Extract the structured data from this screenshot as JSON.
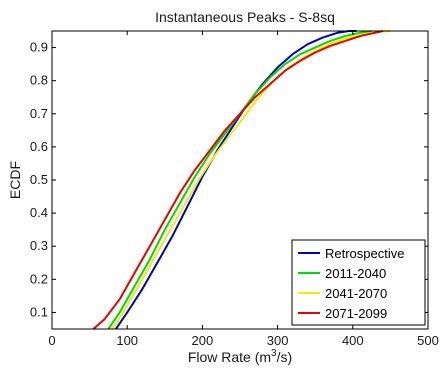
{
  "chart_data": {
    "type": "line",
    "title": "Instantaneous Peaks - S-8sq",
    "xlabel_main": "Flow Rate (m",
    "xlabel_sup": "3",
    "xlabel_tail": "/s)",
    "ylabel": "ECDF",
    "xlim": [
      0,
      500
    ],
    "ylim": [
      0.05,
      0.95
    ],
    "xticks": [
      0,
      100,
      200,
      300,
      400,
      500
    ],
    "xtick_labels": [
      "0",
      "100",
      "200",
      "300",
      "400",
      "500"
    ],
    "yticks": [
      0.1,
      0.2,
      0.3,
      0.4,
      0.5,
      0.6,
      0.7,
      0.8,
      0.9
    ],
    "ytick_labels": [
      "0.1",
      "0.2",
      "0.3",
      "0.4",
      "0.5",
      "0.6",
      "0.7",
      "0.8",
      "0.9"
    ],
    "grid": false,
    "legend_position": "bottom-right",
    "series": [
      {
        "name": "Retrospective",
        "color": "#0000cc",
        "x": [
          85,
          100,
          120,
          140,
          160,
          180,
          200,
          220,
          240,
          260,
          280,
          300,
          320,
          340,
          360,
          380,
          395,
          405
        ],
        "y": [
          0.05,
          0.1,
          0.17,
          0.25,
          0.33,
          0.42,
          0.51,
          0.59,
          0.66,
          0.73,
          0.79,
          0.84,
          0.88,
          0.91,
          0.93,
          0.945,
          0.95,
          0.95
        ]
      },
      {
        "name": "2011-2040",
        "color": "#00dd00",
        "x": [
          75,
          90,
          110,
          130,
          150,
          170,
          190,
          210,
          230,
          250,
          270,
          290,
          310,
          330,
          350,
          370,
          390,
          410,
          425
        ],
        "y": [
          0.05,
          0.1,
          0.18,
          0.26,
          0.35,
          0.43,
          0.51,
          0.58,
          0.64,
          0.7,
          0.76,
          0.81,
          0.85,
          0.88,
          0.9,
          0.92,
          0.935,
          0.945,
          0.95
        ]
      },
      {
        "name": "2041-2070",
        "color": "#eeee00",
        "x": [
          80,
          95,
          115,
          135,
          155,
          175,
          195,
          215,
          235,
          255,
          275,
          295,
          315,
          335,
          355,
          375,
          395,
          415,
          435,
          450
        ],
        "y": [
          0.05,
          0.1,
          0.18,
          0.26,
          0.34,
          0.42,
          0.5,
          0.57,
          0.63,
          0.69,
          0.75,
          0.8,
          0.84,
          0.87,
          0.895,
          0.915,
          0.93,
          0.94,
          0.948,
          0.95
        ]
      },
      {
        "name": "2071-2099",
        "color": "#ee0000",
        "x": [
          55,
          70,
          90,
          110,
          130,
          150,
          170,
          190,
          210,
          230,
          250,
          270,
          290,
          310,
          330,
          350,
          370,
          390,
          410,
          430,
          440
        ],
        "y": [
          0.05,
          0.08,
          0.14,
          0.22,
          0.3,
          0.38,
          0.46,
          0.53,
          0.59,
          0.65,
          0.7,
          0.75,
          0.79,
          0.83,
          0.86,
          0.885,
          0.905,
          0.92,
          0.935,
          0.945,
          0.95
        ]
      }
    ]
  }
}
